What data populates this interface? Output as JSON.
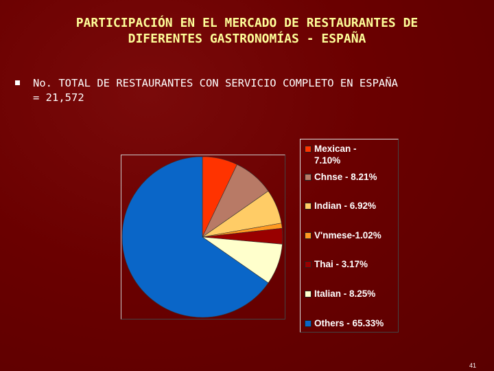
{
  "slide": {
    "title_line1": "PARTICIPACIÓN EN EL MERCADO DE RESTAURANTES DE",
    "title_line2": "DIFERENTES GASTRONOMÍAS - ESPAÑA",
    "bullet_line1": "No. TOTAL DE RESTAURANTES CON SERVICIO COMPLETO EN ESPAÑA",
    "bullet_line2": "= 21,572",
    "page_number": "41"
  },
  "chart_data": {
    "type": "pie",
    "title": "",
    "legend_position": "right",
    "slices": [
      {
        "legend": "Mexican - 7.10%",
        "legend_lines": [
          "Mexican -",
          "7.10%"
        ],
        "value": 7.1,
        "color": "#ff3300"
      },
      {
        "legend": "Chnse - 8.21%",
        "legend_lines": [
          "Chnse - 8.21%"
        ],
        "value": 8.21,
        "color": "#b87a66"
      },
      {
        "legend": "Indian - 6.92%",
        "legend_lines": [
          "Indian - 6.92%"
        ],
        "value": 6.92,
        "color": "#ffcc66"
      },
      {
        "legend": "V'nmese-1.02%",
        "legend_lines": [
          "V'nmese-1.02%"
        ],
        "value": 1.02,
        "color": "#ff9922"
      },
      {
        "legend": "Thai - 3.17%",
        "legend_lines": [
          "Thai - 3.17%"
        ],
        "value": 3.17,
        "color": "#990000"
      },
      {
        "legend": "Italian - 8.25%",
        "legend_lines": [
          "Italian - 8.25%"
        ],
        "value": 8.25,
        "color": "#ffffcc"
      },
      {
        "legend": "Others - 65.33%",
        "legend_lines": [
          "Others - 65.33%"
        ],
        "value": 65.33,
        "color": "#0a66c8"
      }
    ]
  }
}
